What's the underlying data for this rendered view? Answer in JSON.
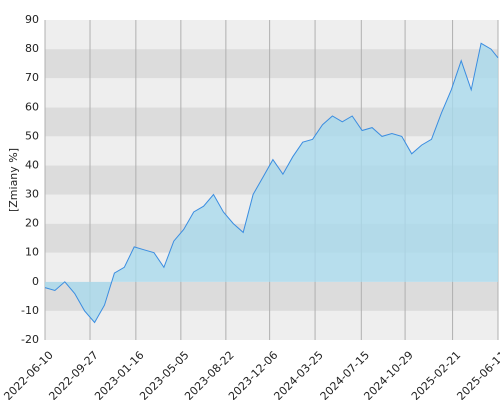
{
  "chart_data": {
    "type": "area",
    "y_label": "[Zmiany %]",
    "x": [
      "2022-06-10",
      "2022-07-04",
      "2022-07-28",
      "2022-08-21",
      "2022-09-14",
      "2022-10-08",
      "2022-11-01",
      "2022-11-25",
      "2022-12-19",
      "2023-01-12",
      "2023-02-05",
      "2023-03-01",
      "2023-03-25",
      "2023-04-18",
      "2023-05-12",
      "2023-06-05",
      "2023-06-29",
      "2023-07-23",
      "2023-08-16",
      "2023-09-09",
      "2023-10-03",
      "2023-10-27",
      "2023-11-20",
      "2023-12-14",
      "2024-01-07",
      "2024-01-31",
      "2024-02-24",
      "2024-03-19",
      "2024-04-12",
      "2024-05-06",
      "2024-05-30",
      "2024-06-23",
      "2024-07-17",
      "2024-08-10",
      "2024-09-03",
      "2024-09-27",
      "2024-10-21",
      "2024-11-14",
      "2024-12-08",
      "2025-01-01",
      "2025-01-25",
      "2025-02-18",
      "2025-03-14",
      "2025-04-07",
      "2025-05-01",
      "2025-05-25",
      "2025-06-11"
    ],
    "values": [
      -2,
      -3,
      0,
      -4,
      -10,
      -14,
      -8,
      3,
      5,
      12,
      11,
      10,
      5,
      14,
      18,
      24,
      26,
      30,
      24,
      20,
      17,
      30,
      36,
      42,
      37,
      43,
      48,
      49,
      54,
      57,
      55,
      57,
      52,
      53,
      50,
      51,
      50,
      44,
      47,
      49,
      58,
      66,
      76,
      66,
      82,
      80,
      77
    ],
    "color": "#3b8de0",
    "fill_color": "#a9d9ec",
    "band_colors": [
      "#eeeeee",
      "#dcdcdc"
    ],
    "xlim": [
      "2022-06-10",
      "2025-06-11"
    ],
    "xticks": [
      "2022-06-10",
      "2022-09-27",
      "2023-01-16",
      "2023-05-05",
      "2023-08-22",
      "2023-12-06",
      "2024-03-25",
      "2024-07-15",
      "2024-10-29",
      "2025-02-21",
      "2025-06-11"
    ],
    "ylim": [
      -20,
      90
    ],
    "yticks": [
      -20,
      -10,
      0,
      10,
      20,
      30,
      40,
      50,
      60,
      70,
      80,
      90
    ],
    "grid": true
  }
}
